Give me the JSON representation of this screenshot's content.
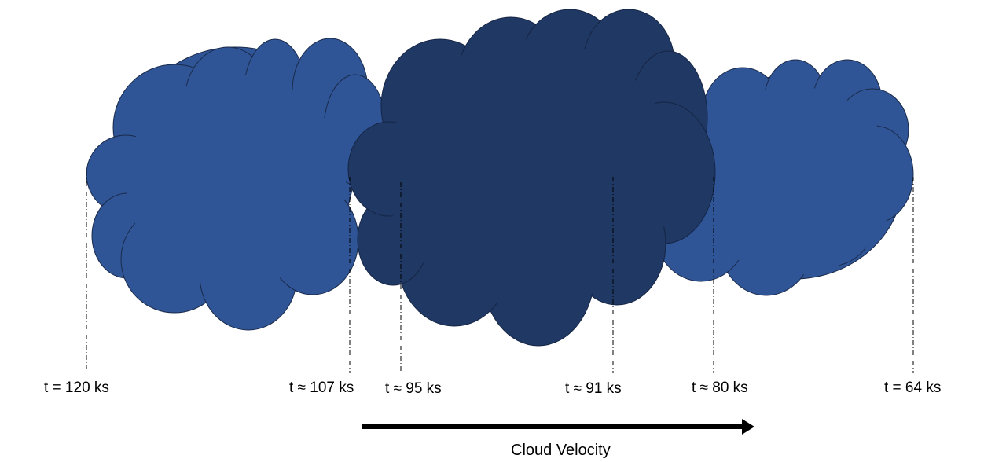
{
  "colors": {
    "outer_cloud": "#2f5597",
    "inner_cloud": "#203864",
    "arrow": "#000000",
    "guide_line": "#000000"
  },
  "clouds": [
    {
      "name": "left-cloud",
      "shade": "outer_cloud"
    },
    {
      "name": "right-cloud",
      "shade": "outer_cloud"
    },
    {
      "name": "central-cloud",
      "shade": "inner_cloud"
    }
  ],
  "time_markers": [
    {
      "label": "t = 120 ks"
    },
    {
      "label": "t ≈ 107 ks"
    },
    {
      "label": "t ≈ 95 ks"
    },
    {
      "label": "t ≈ 91 ks"
    },
    {
      "label": "t ≈ 80 ks"
    },
    {
      "label": "t = 64 ks"
    }
  ],
  "velocity_arrow": {
    "label": "Cloud Velocity",
    "direction": "right"
  }
}
